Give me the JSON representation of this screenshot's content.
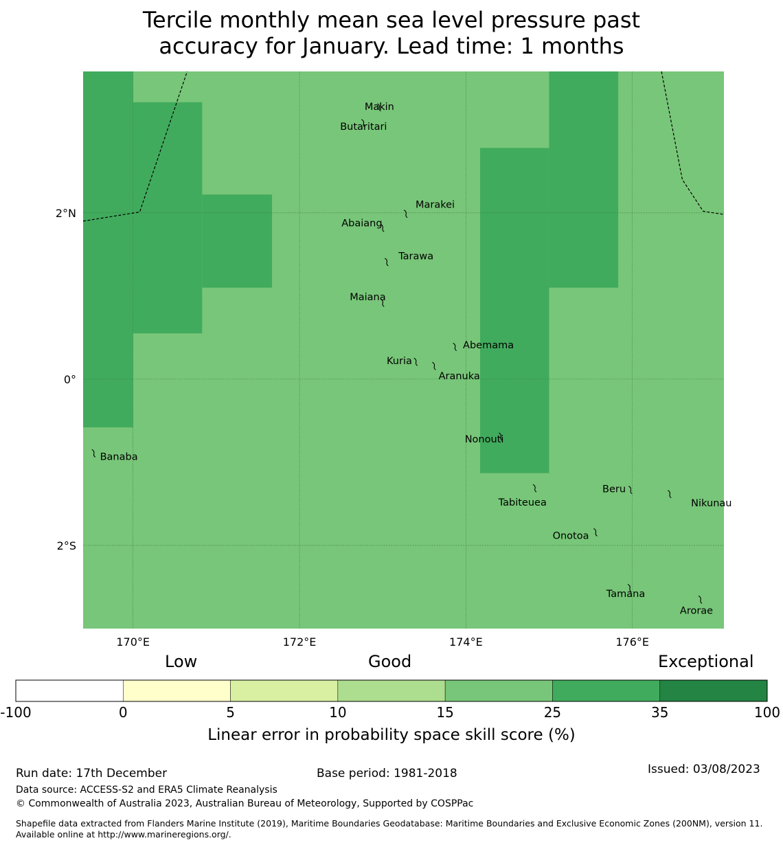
{
  "title": {
    "line1": "Tercile monthly mean sea level pressure past",
    "line2": "accuracy for January. Lead time: 1 months"
  },
  "map": {
    "lon_range": [
      169.4,
      177.1
    ],
    "lat_range": [
      -3.0,
      3.7
    ],
    "lon_ticks": [
      {
        "value": 170,
        "label": "170°E"
      },
      {
        "value": 172,
        "label": "172°E"
      },
      {
        "value": 174,
        "label": "174°E"
      },
      {
        "value": 176,
        "label": "176°E"
      }
    ],
    "lat_ticks": [
      {
        "value": 2,
        "label": "2°N"
      },
      {
        "value": 0,
        "label": "0°"
      },
      {
        "value": -2,
        "label": "2°S"
      }
    ],
    "base_color": "#78c679",
    "skill_cells": [
      {
        "lon": [
          169.4,
          170.0
        ],
        "lat": [
          -0.58,
          3.7
        ],
        "color": "#41ab5d",
        "class": "25-35"
      },
      {
        "lon": [
          170.0,
          170.83
        ],
        "lat": [
          0.55,
          3.33
        ],
        "color": "#41ab5d",
        "class": "25-35"
      },
      {
        "lon": [
          170.83,
          171.67
        ],
        "lat": [
          1.1,
          2.22
        ],
        "color": "#41ab5d",
        "class": "25-35"
      },
      {
        "lon": [
          174.17,
          175.0
        ],
        "lat": [
          -1.13,
          2.78
        ],
        "color": "#41ab5d",
        "class": "25-35"
      },
      {
        "lon": [
          175.0,
          175.83
        ],
        "lat": [
          1.1,
          3.7
        ],
        "color": "#41ab5d",
        "class": "25-35"
      }
    ],
    "eez_boundaries": [
      [
        [
          169.4,
          1.9
        ],
        [
          170.08,
          2.01
        ],
        [
          170.65,
          3.7
        ]
      ],
      [
        [
          176.35,
          3.7
        ],
        [
          176.6,
          2.4
        ],
        [
          176.85,
          2.02
        ],
        [
          177.1,
          1.98
        ]
      ]
    ],
    "islands": [
      {
        "name": "Makin",
        "lon": 172.96,
        "lat": 3.28,
        "label_dlon": 0.0,
        "label_dlat": 0.0
      },
      {
        "name": "Butaritari",
        "lon": 172.77,
        "lat": 3.09,
        "label_dlon": 0.0,
        "label_dlat": -0.05
      },
      {
        "name": "Marakei",
        "lon": 173.28,
        "lat": 2.0,
        "label_dlon": 0.35,
        "label_dlat": 0.1
      },
      {
        "name": "Abaiang",
        "lon": 173.0,
        "lat": 1.83,
        "label_dlon": -0.25,
        "label_dlat": 0.05
      },
      {
        "name": "Tarawa",
        "lon": 173.05,
        "lat": 1.42,
        "label_dlon": 0.35,
        "label_dlat": 0.06
      },
      {
        "name": "Maiana",
        "lon": 173.0,
        "lat": 0.93,
        "label_dlon": -0.18,
        "label_dlat": 0.06
      },
      {
        "name": "Abemama",
        "lon": 173.87,
        "lat": 0.4,
        "label_dlon": 0.4,
        "label_dlat": 0.01
      },
      {
        "name": "Kuria",
        "lon": 173.4,
        "lat": 0.22,
        "label_dlon": -0.2,
        "label_dlat": 0.0
      },
      {
        "name": "Aranuka",
        "lon": 173.62,
        "lat": 0.17,
        "label_dlon": 0.3,
        "label_dlat": -0.13
      },
      {
        "name": "Nonouti",
        "lon": 174.42,
        "lat": -0.68,
        "label_dlon": -0.2,
        "label_dlat": -0.04
      },
      {
        "name": "Banaba",
        "lon": 169.53,
        "lat": -0.88,
        "label_dlon": 0.3,
        "label_dlat": -0.05
      },
      {
        "name": "Tabiteuea",
        "lon": 174.83,
        "lat": -1.3,
        "label_dlon": -0.15,
        "label_dlat": -0.18
      },
      {
        "name": "Beru",
        "lon": 175.98,
        "lat": -1.32,
        "label_dlon": -0.2,
        "label_dlat": 0.0
      },
      {
        "name": "Nikunau",
        "lon": 176.45,
        "lat": -1.37,
        "label_dlon": 0.5,
        "label_dlat": -0.12
      },
      {
        "name": "Onotoa",
        "lon": 175.56,
        "lat": -1.83,
        "label_dlon": -0.3,
        "label_dlat": -0.05
      },
      {
        "name": "Tamana",
        "lon": 175.97,
        "lat": -2.5,
        "label_dlon": -0.05,
        "label_dlat": -0.08
      },
      {
        "name": "Arorae",
        "lon": 176.82,
        "lat": -2.64,
        "label_dlon": -0.05,
        "label_dlat": -0.14
      }
    ]
  },
  "colorbar": {
    "categories": [
      {
        "label": "Low"
      },
      {
        "label": "Good"
      },
      {
        "label": "Exceptional"
      }
    ],
    "bins": [
      {
        "from": "-100",
        "to": "0",
        "color": "#ffffff"
      },
      {
        "from": "0",
        "to": "5",
        "color": "#ffffcc"
      },
      {
        "from": "5",
        "to": "10",
        "color": "#d9f0a3"
      },
      {
        "from": "10",
        "to": "15",
        "color": "#addd8e"
      },
      {
        "from": "15",
        "to": "25",
        "color": "#78c679"
      },
      {
        "from": "25",
        "to": "35",
        "color": "#41ab5d"
      },
      {
        "from": "35",
        "to": "100",
        "color": "#238443"
      }
    ],
    "tick_labels": [
      "-100",
      "0",
      "5",
      "10",
      "15",
      "25",
      "35",
      "100"
    ],
    "label": "Linear error in probability space skill score (%)"
  },
  "footer": {
    "run_date": "Run date: 17th December",
    "base_period": "Base period: 1981-2018",
    "issued": "Issued: 03/08/2023",
    "data_source": "Data source: ACCESS-S2 and ERA5 Climate Reanalysis",
    "copyright": "© Commonwealth of Australia 2023, Australian Bureau of Meteorology, Supported by COSPPac",
    "shapefile": "Shapefile data extracted from Flanders Marine Institute (2019), Maritime Boundaries Geodatabase: Maritime Boundaries and Exclusive Economic Zones (200NM), version 11. Available online at http://www.marineregions.org/."
  }
}
